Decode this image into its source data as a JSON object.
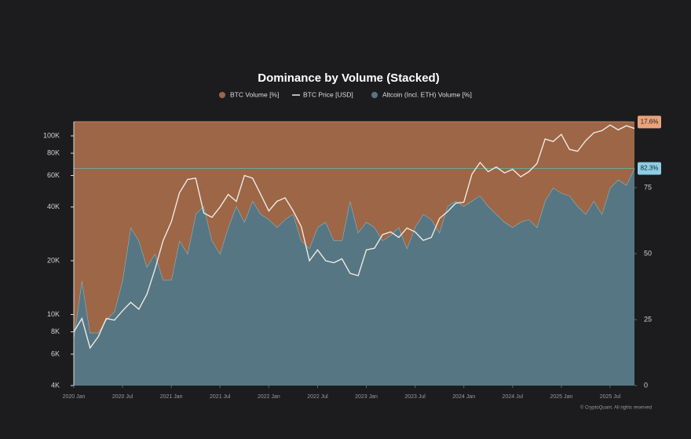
{
  "chart_data": {
    "type": "stacked-area-line",
    "title": "Dominance by Volume (Stacked)",
    "footer": "© CryptoQuant. All rights reserved",
    "x": [
      "2020 Jan",
      "2020 Feb",
      "2020 Mar",
      "2020 Apr",
      "2020 May",
      "2020 Jun",
      "2020 Jul",
      "2020 Aug",
      "2020 Sep",
      "2020 Oct",
      "2020 Nov",
      "2020 Dec",
      "2021 Jan",
      "2021 Feb",
      "2021 Mar",
      "2021 Apr",
      "2021 May",
      "2021 Jun",
      "2021 Jul",
      "2021 Aug",
      "2021 Sep",
      "2021 Oct",
      "2021 Nov",
      "2021 Dec",
      "2022 Jan",
      "2022 Feb",
      "2022 Mar",
      "2022 Apr",
      "2022 May",
      "2022 Jun",
      "2022 Jul",
      "2022 Aug",
      "2022 Sep",
      "2022 Oct",
      "2022 Nov",
      "2022 Dec",
      "2023 Jan",
      "2023 Feb",
      "2023 Mar",
      "2023 Apr",
      "2023 May",
      "2023 Jun",
      "2023 Jul",
      "2023 Aug",
      "2023 Sep",
      "2023 Oct",
      "2023 Nov",
      "2023 Dec",
      "2024 Jan",
      "2024 Feb",
      "2024 Mar",
      "2024 Apr",
      "2024 May",
      "2024 Jun",
      "2024 Jul",
      "2024 Aug",
      "2024 Sep",
      "2024 Oct",
      "2024 Nov",
      "2024 Dec",
      "2025 Jan",
      "2025 Feb",
      "2025 Mar",
      "2025 Apr",
      "2025 May",
      "2025 Jun",
      "2025 Jul",
      "2025 Aug",
      "2025 Sep",
      "2025 Oct"
    ],
    "xticks": [
      "2020 Jan",
      "2020 Jul",
      "2021 Jan",
      "2021 Jul",
      "2022 Jan",
      "2022 Jul",
      "2023 Jan",
      "2023 Jul",
      "2024 Jan",
      "2024 Jul",
      "2025 Jan",
      "2025 Jul"
    ],
    "ylim": [
      4000,
      120000
    ],
    "log_y": true,
    "yticks": [
      {
        "value": 4000,
        "label": "4K"
      },
      {
        "value": 6000,
        "label": "6K"
      },
      {
        "value": 8000,
        "label": "8K"
      },
      {
        "value": 10000,
        "label": "10K"
      },
      {
        "value": 20000,
        "label": "20K"
      },
      {
        "value": 40000,
        "label": "40K"
      },
      {
        "value": 60000,
        "label": "60K"
      },
      {
        "value": 80000,
        "label": "80K"
      },
      {
        "value": 100000,
        "label": "100K"
      }
    ],
    "y2lim": [
      0,
      100
    ],
    "y2ticks": [
      0,
      25,
      50,
      75
    ],
    "reference_line": 82.3,
    "series": [
      {
        "name": "BTC Volume [%]",
        "kind": "area",
        "axis": "y2",
        "color": "#9c6647",
        "end_label": "17.6%",
        "values": [
          82,
          60,
          80,
          80,
          75,
          72,
          60,
          40,
          45,
          55,
          50,
          60,
          60,
          45,
          50,
          35,
          32,
          45,
          50,
          40,
          32,
          38,
          30,
          35,
          37,
          40,
          37,
          35,
          45,
          48,
          40,
          38,
          45,
          45,
          30,
          42,
          38,
          40,
          45,
          43,
          40,
          48,
          40,
          35,
          37,
          42,
          32,
          30,
          32,
          30,
          28,
          32,
          35,
          38,
          40,
          38,
          37,
          40,
          30,
          25,
          27,
          28,
          32,
          35,
          30,
          35,
          25,
          22,
          24,
          17.6
        ]
      },
      {
        "name": "BTC Price [USD]",
        "kind": "line",
        "color": "#efe9e2",
        "values": [
          8000,
          9500,
          6500,
          7500,
          9500,
          9300,
          10500,
          11700,
          10700,
          13000,
          18000,
          26000,
          33000,
          48000,
          57000,
          58000,
          37000,
          35000,
          40000,
          47000,
          43000,
          60000,
          58000,
          47000,
          38000,
          43000,
          45000,
          38000,
          31000,
          20000,
          23000,
          20000,
          19500,
          20500,
          17000,
          16500,
          23000,
          23500,
          28000,
          29000,
          27000,
          30500,
          29000,
          26000,
          27000,
          34500,
          37700,
          42000,
          42500,
          61000,
          71000,
          63000,
          67000,
          62000,
          65000,
          59000,
          63000,
          70000,
          96000,
          93000,
          102000,
          84000,
          82000,
          94000,
          104000,
          107000,
          115000,
          108000,
          114000,
          110000
        ]
      },
      {
        "name": "Altcoin (Incl. ETH) Volume [%]",
        "kind": "area",
        "axis": "y2",
        "color": "#567683",
        "end_label": "82.3%",
        "values": [
          18,
          40,
          20,
          20,
          25,
          28,
          40,
          60,
          55,
          45,
          50,
          40,
          40,
          55,
          50,
          65,
          68,
          55,
          50,
          60,
          68,
          62,
          70,
          65,
          63,
          60,
          63,
          65,
          55,
          52,
          60,
          62,
          55,
          55,
          70,
          58,
          62,
          60,
          55,
          57,
          60,
          52,
          60,
          65,
          63,
          58,
          68,
          70,
          68,
          70,
          72,
          68,
          65,
          62,
          60,
          62,
          63,
          60,
          70,
          75,
          73,
          72,
          68,
          65,
          70,
          65,
          75,
          78,
          76,
          82.3
        ]
      }
    ]
  }
}
